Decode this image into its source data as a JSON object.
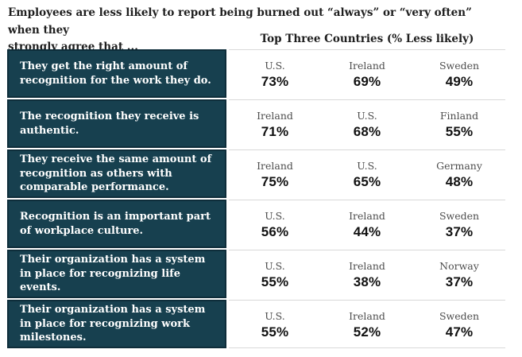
{
  "figure": {
    "title_line1": "Employees are less likely to report being burned out “always” or “very often” when they",
    "title_line2": "strongly agree that ...",
    "column_header": "Top Three Countries (% Less likely)"
  },
  "rows": [
    {
      "statement": "They get the right amount of recognition for the work they do.",
      "cells": [
        {
          "country": "U.S.",
          "pct": "73%"
        },
        {
          "country": "Ireland",
          "pct": "69%"
        },
        {
          "country": "Sweden",
          "pct": "49%"
        }
      ]
    },
    {
      "statement": "The recognition they receive is authentic.",
      "cells": [
        {
          "country": "Ireland",
          "pct": "71%"
        },
        {
          "country": "U.S.",
          "pct": "68%"
        },
        {
          "country": "Finland",
          "pct": "55%"
        }
      ]
    },
    {
      "statement": "They receive the same amount of recognition as others with comparable performance.",
      "cells": [
        {
          "country": "Ireland",
          "pct": "75%"
        },
        {
          "country": "U.S.",
          "pct": "65%"
        },
        {
          "country": "Germany",
          "pct": "48%"
        }
      ]
    },
    {
      "statement": "Recognition is an important part of workplace culture.",
      "cells": [
        {
          "country": "U.S.",
          "pct": "56%"
        },
        {
          "country": "Ireland",
          "pct": "44%"
        },
        {
          "country": "Sweden",
          "pct": "37%"
        }
      ]
    },
    {
      "statement": "Their organization has a system in place for recognizing life events.",
      "cells": [
        {
          "country": "U.S.",
          "pct": "55%"
        },
        {
          "country": "Ireland",
          "pct": "38%"
        },
        {
          "country": "Norway",
          "pct": "37%"
        }
      ]
    },
    {
      "statement": "Their organization has a system in place for recognizing work milestones.",
      "cells": [
        {
          "country": "U.S.",
          "pct": "55%"
        },
        {
          "country": "Ireland",
          "pct": "52%"
        },
        {
          "country": "Sweden",
          "pct": "47%"
        }
      ]
    }
  ],
  "colors": {
    "statement_box_fill": "#17404f",
    "statement_box_border": "#0e2d3a",
    "divider_line": "#d9d9d9",
    "country_label_text": "#4d4d4d",
    "percentage_text": "#111111",
    "title_text": "#1e1e1e",
    "statement_text": "#ffffff",
    "background": "#ffffff"
  },
  "chart_data": {
    "type": "table",
    "title": "Employees are less likely to report being burned out “always” or “very often” when they strongly agree that ...",
    "column_group_header": "Top Three Countries (% Less likely)",
    "unit": "% less likely",
    "rows": [
      {
        "statement": "They get the right amount of recognition for the work they do.",
        "top_three": [
          {
            "country": "U.S.",
            "value": 73
          },
          {
            "country": "Ireland",
            "value": 69
          },
          {
            "country": "Sweden",
            "value": 49
          }
        ]
      },
      {
        "statement": "The recognition they receive is authentic.",
        "top_three": [
          {
            "country": "Ireland",
            "value": 71
          },
          {
            "country": "U.S.",
            "value": 68
          },
          {
            "country": "Finland",
            "value": 55
          }
        ]
      },
      {
        "statement": "They receive the same amount of recognition as others with comparable performance.",
        "top_three": [
          {
            "country": "Ireland",
            "value": 75
          },
          {
            "country": "U.S.",
            "value": 65
          },
          {
            "country": "Germany",
            "value": 48
          }
        ]
      },
      {
        "statement": "Recognition is an important part of workplace culture.",
        "top_three": [
          {
            "country": "U.S.",
            "value": 56
          },
          {
            "country": "Ireland",
            "value": 44
          },
          {
            "country": "Sweden",
            "value": 37
          }
        ]
      },
      {
        "statement": "Their organization has a system in place for recognizing life events.",
        "top_three": [
          {
            "country": "U.S.",
            "value": 55
          },
          {
            "country": "Ireland",
            "value": 38
          },
          {
            "country": "Norway",
            "value": 37
          }
        ]
      },
      {
        "statement": "Their organization has a system in place for recognizing work milestones.",
        "top_three": [
          {
            "country": "U.S.",
            "value": 55
          },
          {
            "country": "Ireland",
            "value": 52
          },
          {
            "country": "Sweden",
            "value": 47
          }
        ]
      }
    ]
  }
}
